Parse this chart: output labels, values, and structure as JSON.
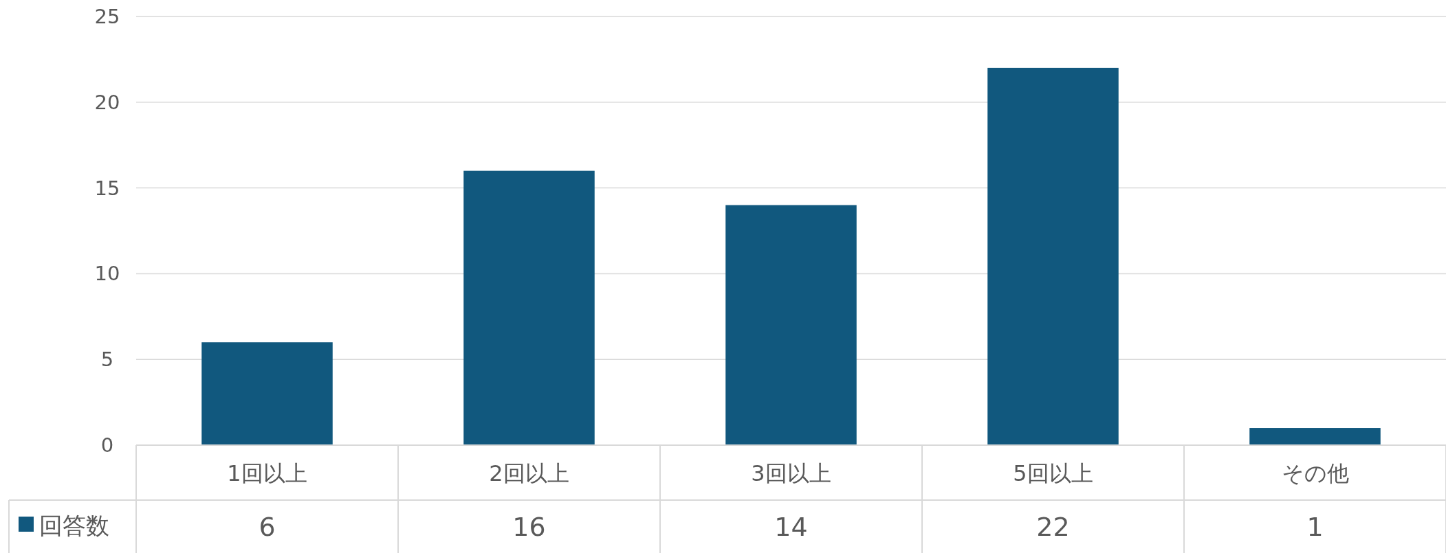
{
  "chart_data": {
    "type": "bar",
    "categories": [
      "1回以上",
      "2回以上",
      "3回以上",
      "5回以上",
      "その他"
    ],
    "series": [
      {
        "name": "回答数",
        "color": "#11587e",
        "values": [
          6,
          16,
          14,
          22,
          1
        ]
      }
    ],
    "ylim": [
      0,
      25
    ],
    "yticks": [
      0,
      5,
      10,
      15,
      20,
      25
    ],
    "grid": "y",
    "data_labels": true,
    "legend": "bottom left"
  }
}
